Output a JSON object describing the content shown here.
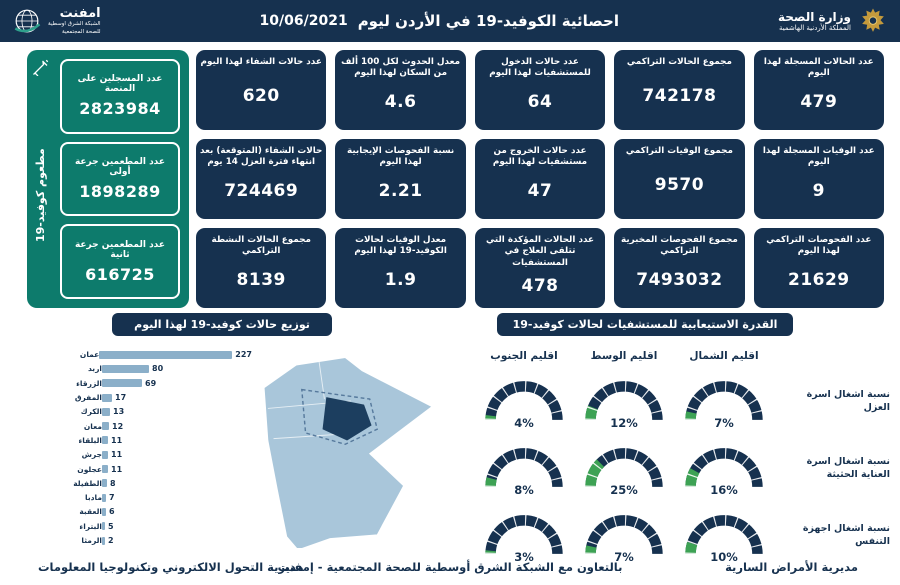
{
  "header": {
    "title": "احصائية الكوفيد-19 في الأردن ليوم",
    "date": "10/06/2021",
    "ministry": {
      "name": "وزارة الصحة",
      "sub": "المملكة الأردنية الهاشمية"
    },
    "logo": {
      "name": "امفنت",
      "sub1": "الشبكة الشرق اوسطية",
      "sub2": "للصحة المجتمعية"
    }
  },
  "vaccination": {
    "side_label": "مطعوم كوفيد-19",
    "cards": [
      {
        "label": "عدد المسجلين على المنصة",
        "value": "2823984"
      },
      {
        "label": "عدد المطعمين جرعة أولى",
        "value": "1898289"
      },
      {
        "label": "عدد المطعمين جرعة ثانية",
        "value": "616725"
      }
    ]
  },
  "stats": [
    {
      "label": "عدد الحالات المسجلة لهذا اليوم",
      "value": "479"
    },
    {
      "label": "مجموع الحالات التراكمي",
      "value": "742178"
    },
    {
      "label": "عدد حالات الدخول للمستشفيات لهذا اليوم",
      "value": "64"
    },
    {
      "label": "معدل الحدوث لكل 100 ألف من السكان لهذا اليوم",
      "value": "4.6"
    },
    {
      "label": "عدد حالات الشفاء لهذا اليوم",
      "value": "620"
    },
    {
      "label": "عدد الوفيات المسجلة لهذا اليوم",
      "value": "9"
    },
    {
      "label": "مجموع الوفيات التراكمي",
      "value": "9570"
    },
    {
      "label": "عدد حالات الخروج من مستشفيات لهذا اليوم",
      "value": "47"
    },
    {
      "label": "نسبة الفحوصات الإيجابية لهذا اليوم",
      "value": "2.21"
    },
    {
      "label": "حالات الشفاء (المتوقعة) بعد انتهاء فترة العزل 14 يوم",
      "value": "724469"
    },
    {
      "label": "عدد الفحوصات التراكمي لهذا اليوم",
      "value": "21629"
    },
    {
      "label": "مجموع الفحوصات المخبرية التراكمي",
      "value": "7493032"
    },
    {
      "label": "عدد الحالات المؤكدة التي تتلقى العلاج في المستشفيات",
      "value": "478"
    },
    {
      "label": "معدل الوفيات لحالات الكوفيد-19 لهذا اليوم",
      "value": "1.9"
    },
    {
      "label": "مجموع الحالات النشطة التراكمي",
      "value": "8139"
    }
  ],
  "chart_data": [
    {
      "type": "bar",
      "title": "توزيع حالات كوفيد-19 لهذا اليوم",
      "categories": [
        "عمان",
        "اربد",
        "الزرقاء",
        "المفرق",
        "الكرك",
        "معان",
        "البلقاء",
        "جرش",
        "عجلون",
        "الطفيلة",
        "مادبا",
        "العقبة",
        "البتراء",
        "الرمثا"
      ],
      "values": [
        227,
        80,
        69,
        17,
        13,
        12,
        11,
        11,
        11,
        8,
        7,
        6,
        5,
        2
      ],
      "xlabel": "",
      "ylabel": "",
      "orientation": "horizontal"
    },
    {
      "type": "gauge-grid",
      "title": "القدرة الاستيعابية للمستشفيات لحالات كوفيد-19",
      "columns": [
        "اقليم الجنوب",
        "اقليم الوسط",
        "اقليم الشمال"
      ],
      "rows": [
        {
          "label": "نسبة اشغال اسرة العزل",
          "values": [
            4,
            12,
            7
          ]
        },
        {
          "label": "نسبة اشغال اسرة العناية الحثيثة",
          "values": [
            8,
            25,
            16
          ]
        },
        {
          "label": "نسبة اشغال اجهزة التنفس",
          "values": [
            3,
            7,
            10
          ]
        }
      ],
      "unit": "%"
    }
  ],
  "footer": {
    "right": "مديرية الأمراض السارية",
    "center": "بالتعاون مع الشبكة الشرق أوسطية للصحة المجتمعية - إمفنت",
    "left": "مديرية التحول الالكتروني وتكنولوجيا المعلومات"
  },
  "colors": {
    "navy": "#16314f",
    "teal": "#0d7b6c",
    "bar_blue": "#8bafc9",
    "gauge_green": "#3da254",
    "map_light": "#a9c6da",
    "map_dark": "#1c3e5f"
  }
}
